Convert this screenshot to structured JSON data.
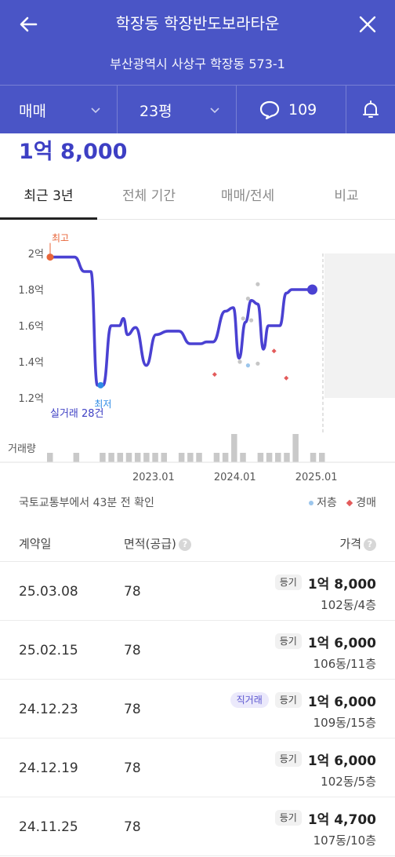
{
  "header": {
    "title": "학장동 학장반도보라타운",
    "address": "부산광역시 사상구 학장동 573-1"
  },
  "filters": {
    "trade_type": "매매",
    "area": "23평",
    "comment_count": "109"
  },
  "current_price": "1억 8,000",
  "tabs": [
    {
      "label": "최근 3년",
      "active": true
    },
    {
      "label": "전체 기간",
      "active": false
    },
    {
      "label": "매매/전세",
      "active": false
    },
    {
      "label": "비교",
      "active": false
    }
  ],
  "chart_data": {
    "type": "line",
    "y_tick_labels": [
      "2억",
      "1.8억",
      "1.6억",
      "1.4억",
      "1.2억"
    ],
    "ylim": [
      1.2,
      2.0
    ],
    "x_tick_labels": [
      "2023.01",
      "2024.01",
      "2025.01"
    ],
    "xlim": [
      2022.0,
      2025.35
    ],
    "series": [
      {
        "x": [
          2022.0,
          2022.3,
          2022.42,
          2022.5,
          2022.58,
          2022.65,
          2022.75,
          2022.85,
          2022.9,
          2022.95,
          2023.05,
          2023.18,
          2023.3,
          2023.45,
          2023.58,
          2023.72,
          2023.85,
          2023.92,
          2024.0,
          2024.15,
          2024.25,
          2024.32,
          2024.4,
          2024.47,
          2024.55,
          2024.62,
          2024.68,
          2024.75,
          2024.82,
          2024.9,
          2024.97,
          2025.05,
          2025.15,
          2025.22
        ],
        "values": [
          1.98,
          1.98,
          1.9,
          1.9,
          1.27,
          1.27,
          1.6,
          1.6,
          1.64,
          1.55,
          1.59,
          1.38,
          1.55,
          1.57,
          1.57,
          1.5,
          1.5,
          1.51,
          1.51,
          1.68,
          1.7,
          1.42,
          1.62,
          1.74,
          1.72,
          1.47,
          1.6,
          1.6,
          1.6,
          1.78,
          1.8,
          1.8,
          1.8,
          1.8
        ],
        "color": "#4a41d2"
      }
    ],
    "grey_points": [
      {
        "x": 2024.43,
        "y": 1.75
      },
      {
        "x": 2024.47,
        "y": 1.63
      },
      {
        "x": 2024.55,
        "y": 1.83
      },
      {
        "x": 2024.37,
        "y": 1.64
      },
      {
        "x": 2024.33,
        "y": 1.4
      },
      {
        "x": 2024.55,
        "y": 1.39
      }
    ],
    "low_floor_points": [
      {
        "x": 2024.43,
        "y": 1.38
      }
    ],
    "auction_points": [
      {
        "x": 2024.02,
        "y": 1.33
      },
      {
        "x": 2024.75,
        "y": 1.46
      },
      {
        "x": 2024.9,
        "y": 1.31
      }
    ],
    "annotations": {
      "max_label": "최고",
      "min_label": "최저",
      "min_sub_label": "실거래 28건"
    },
    "volume_label": "거래량",
    "volume": [
      1,
      0,
      0,
      1,
      0,
      0,
      1,
      1,
      1,
      1,
      1,
      1,
      1,
      1,
      0,
      1,
      1,
      1,
      0,
      1,
      1,
      2,
      1,
      0,
      1,
      1,
      1,
      1,
      2,
      0,
      1,
      1
    ],
    "colors": {
      "line": "#4a41d2",
      "max": "#e8663a",
      "min": "#2e8be6",
      "volume": "#c9c9c9"
    }
  },
  "source": {
    "text": "국토교통부에서 43분 전 확인",
    "legend_low_floor": "저층",
    "legend_auction": "경매",
    "low_floor_color": "#9cc6ec",
    "auction_color": "#e35b5b"
  },
  "table": {
    "headers": {
      "date": "계약일",
      "area": "면적(공급)",
      "price": "가격"
    },
    "rows": [
      {
        "date": "25.03.08",
        "area": "78",
        "direct": "",
        "badge": "등기",
        "price": "1억 8,000",
        "unit": "102동/4층"
      },
      {
        "date": "25.02.15",
        "area": "78",
        "direct": "",
        "badge": "등기",
        "price": "1억 6,000",
        "unit": "106동/11층"
      },
      {
        "date": "24.12.23",
        "area": "78",
        "direct": "직거래",
        "badge": "등기",
        "price": "1억 6,000",
        "unit": "109동/15층"
      },
      {
        "date": "24.12.19",
        "area": "78",
        "direct": "",
        "badge": "등기",
        "price": "1억 6,000",
        "unit": "102동/5층"
      },
      {
        "date": "24.11.25",
        "area": "78",
        "direct": "",
        "badge": "등기",
        "price": "1억 4,700",
        "unit": "107동/10층"
      }
    ]
  },
  "icons": {
    "back": "arrow-left-icon",
    "close": "close-icon",
    "comment": "speech-bubble-icon",
    "bell": "bell-icon",
    "chevron": "chevron-down-icon",
    "help": "question-circle-icon"
  }
}
